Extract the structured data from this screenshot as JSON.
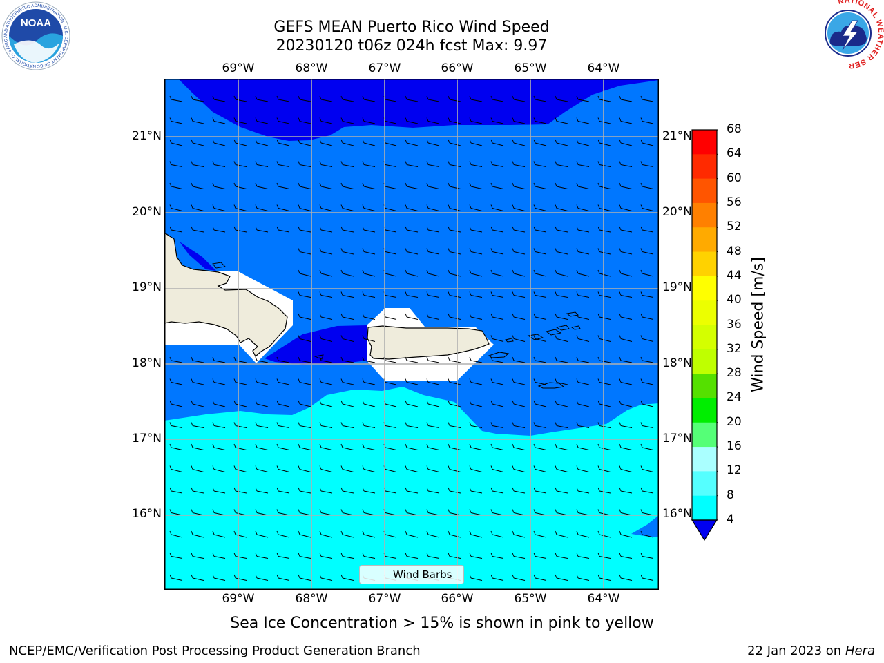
{
  "title": {
    "line1": "GEFS MEAN Puerto Rico Wind Speed",
    "line2": "20230120 t06z 024h fcst   Max: 9.97"
  },
  "map": {
    "lon_labels": [
      "69°W",
      "68°W",
      "67°W",
      "66°W",
      "65°W",
      "64°W"
    ],
    "lat_labels": [
      "21°N",
      "20°N",
      "19°N",
      "18°N",
      "17°N",
      "16°N"
    ],
    "legend_label": "Wind Barbs",
    "colors": {
      "band_4_8": "#0077ff",
      "band_lt4": "#0000f0",
      "band_8_12": "#00ffff",
      "land": "#efecdc",
      "nodata": "#ffffff",
      "grid": "#b0b0b0"
    }
  },
  "colorbar": {
    "label": "Wind Speed [m/s]",
    "ticks": [
      "68",
      "64",
      "60",
      "56",
      "52",
      "48",
      "44",
      "40",
      "36",
      "32",
      "28",
      "24",
      "20",
      "16",
      "12",
      "8",
      "4"
    ],
    "colors": [
      "#ff0000",
      "#ff2a00",
      "#ff5500",
      "#ff8000",
      "#ffaa00",
      "#ffd200",
      "#ffff00",
      "#ecff00",
      "#d4ff00",
      "#bfff00",
      "#55e000",
      "#00ee00",
      "#55ff77",
      "#aaffff",
      "#55ffff",
      "#00ffff",
      "#0077ff"
    ],
    "extend_color": "#0000f0"
  },
  "footnote": "Sea Ice Concentration > 15% is shown in pink to yellow",
  "footer": {
    "left": "NCEP/EMC/Verification Post Processing Product Generation Branch",
    "right_prefix": "22 Jan 2023 on ",
    "right_host": "Hera"
  },
  "logos": {
    "noaa_text": "NOAA",
    "noaa_ring": "NATIONAL OCEANIC AND ATMOSPHERIC ADMINISTRATION · U.S. DEPARTMENT OF COMMERCE",
    "nws_ring": "NATIONAL WEATHER SERVICE"
  }
}
